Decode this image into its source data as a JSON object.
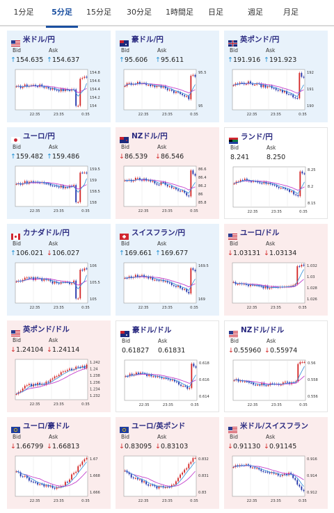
{
  "tabs": [
    {
      "label": "1分足",
      "active": false
    },
    {
      "label": "5分足",
      "active": true
    },
    {
      "label": "15分足",
      "active": false
    },
    {
      "label": "30分足",
      "active": false
    },
    {
      "label": "1時間足",
      "active": false
    },
    {
      "label": "日足",
      "active": false
    },
    {
      "label": "週足",
      "active": false
    },
    {
      "label": "月足",
      "active": false
    }
  ],
  "labels": {
    "bid": "Bid",
    "ask": "Ask"
  },
  "colors": {
    "up_arrow": "#1f8fd3",
    "down_arrow": "#d32727",
    "bull_candle": "#d32727",
    "bear_candle": "#2233aa",
    "ma_short": "#2e8bd8",
    "ma_long": "#c23fcc",
    "active_tab": "#1a4fa0"
  },
  "cards": [
    {
      "pair": "米ドル/円",
      "flag": "us",
      "trend": "up",
      "bid": "154.635",
      "ask": "154.637",
      "bid_dir": "up",
      "ask_dir": "up",
      "yticks": [
        "154.8",
        "154.6",
        "154.4",
        "154.2",
        "154"
      ],
      "xticks": [
        "22:35",
        "23:35",
        "0:35"
      ],
      "shape": "tail-up"
    },
    {
      "pair": "豪ドル/円",
      "flag": "au",
      "trend": "up",
      "bid": "95.606",
      "ask": "95.611",
      "bid_dir": "up",
      "ask_dir": "up",
      "yticks": [
        "95.5",
        "95"
      ],
      "xticks": [
        "22:35",
        "23:35",
        "0:35"
      ],
      "shape": "drop-spike"
    },
    {
      "pair": "英ポンド/円",
      "flag": "gb",
      "trend": "up",
      "bid": "191.916",
      "ask": "191.923",
      "bid_dir": "up",
      "ask_dir": "up",
      "yticks": [
        "192",
        "191",
        "190"
      ],
      "xticks": [
        "22:35",
        "23:35",
        "0:35"
      ],
      "shape": "drop-spike"
    },
    {
      "pair": "ユーロ/円",
      "flag": "jp",
      "trend": "up",
      "bid": "159.482",
      "ask": "159.486",
      "bid_dir": "up",
      "ask_dir": "up",
      "yticks": [
        "159.5",
        "159",
        "158.5",
        "158"
      ],
      "xticks": [
        "22:35",
        "23:35",
        "0:35"
      ],
      "shape": "tail-up"
    },
    {
      "pair": "NZドル/円",
      "flag": "nz",
      "trend": "down",
      "bid": "86.539",
      "ask": "86.546",
      "bid_dir": "down",
      "ask_dir": "down",
      "yticks": [
        "86.6",
        "86.4",
        "86.2",
        "86",
        "85.8"
      ],
      "xticks": [
        "22:35",
        "23:35",
        "0:35"
      ],
      "shape": "drop-spike"
    },
    {
      "pair": "ランド/円",
      "flag": "za",
      "trend": "flat",
      "bid": "8.241",
      "ask": "8.250",
      "bid_dir": "none",
      "ask_dir": "none",
      "yticks": [
        "8.25",
        "8.2",
        "8.15"
      ],
      "xticks": [
        "22:35",
        "23:35",
        "0:35"
      ],
      "shape": "drop-spike"
    },
    {
      "pair": "カナダドル/円",
      "flag": "ca",
      "trend": "up",
      "bid": "106.021",
      "ask": "106.027",
      "bid_dir": "up",
      "ask_dir": "down",
      "yticks": [
        "106",
        "105.5",
        "105"
      ],
      "xticks": [
        "22:35",
        "23:35",
        "0:35"
      ],
      "shape": "tail-up"
    },
    {
      "pair": "スイスフラン/円",
      "flag": "ch",
      "trend": "up",
      "bid": "169.661",
      "ask": "169.677",
      "bid_dir": "up",
      "ask_dir": "up",
      "yticks": [
        "169.5",
        "169"
      ],
      "xticks": [
        "22:35",
        "23:35",
        "0:35"
      ],
      "shape": "drop-spike"
    },
    {
      "pair": "ユーロ/ドル",
      "flag": "us",
      "trend": "down",
      "bid": "1.03131",
      "ask": "1.03134",
      "bid_dir": "down",
      "ask_dir": "down",
      "yticks": [
        "1.032",
        "1.03",
        "1.028",
        "1.026"
      ],
      "xticks": [
        "22:35",
        "23:35",
        "0:35"
      ],
      "shape": "dip-spike"
    },
    {
      "pair": "英ポンド/ドル",
      "flag": "us",
      "trend": "down",
      "bid": "1.24104",
      "ask": "1.24114",
      "bid_dir": "down",
      "ask_dir": "down",
      "yticks": [
        "1.242",
        "1.24",
        "1.238",
        "1.236",
        "1.234",
        "1.232"
      ],
      "xticks": [
        "22:35",
        "23:35",
        "0:35"
      ],
      "shape": "rise"
    },
    {
      "pair": "豪ドル/ドル",
      "flag": "au",
      "trend": "flat",
      "bid": "0.61827",
      "ask": "0.61831",
      "bid_dir": "none",
      "ask_dir": "none",
      "yticks": [
        "0.618",
        "0.616",
        "0.614"
      ],
      "xticks": [
        "22:35",
        "23:35",
        "0:35"
      ],
      "shape": "drop-spike"
    },
    {
      "pair": "NZドル/ドル",
      "flag": "us",
      "trend": "flat",
      "bid": "0.55960",
      "ask": "0.55974",
      "bid_dir": "down",
      "ask_dir": "down",
      "yticks": [
        "0.56",
        "0.558",
        "0.556"
      ],
      "xticks": [
        "22:35",
        "23:35",
        "0:35"
      ],
      "shape": "dip-spike"
    },
    {
      "pair": "ユーロ/豪ドル",
      "flag": "eu",
      "trend": "down",
      "bid": "1.66799",
      "ask": "1.66813",
      "bid_dir": "down",
      "ask_dir": "down",
      "yticks": [
        "1.67",
        "1.668",
        "1.666"
      ],
      "xticks": [
        "22:35",
        "23:35",
        "0:35"
      ],
      "shape": "u-rise"
    },
    {
      "pair": "ユーロ/英ポンド",
      "flag": "eu",
      "trend": "down",
      "bid": "0.83095",
      "ask": "0.83103",
      "bid_dir": "down",
      "ask_dir": "down",
      "yticks": [
        "0.832",
        "0.831",
        "0.83"
      ],
      "xticks": [
        "22:35",
        "23:35",
        "0:35"
      ],
      "shape": "u-rise"
    },
    {
      "pair": "米ドル/スイスフラン",
      "flag": "us",
      "trend": "down",
      "bid": "0.91130",
      "ask": "0.91145",
      "bid_dir": "down",
      "ask_dir": "down",
      "yticks": [
        "0.916",
        "0.914",
        "0.912"
      ],
      "xticks": [
        "22:35",
        "23:35",
        "0:35"
      ],
      "shape": "fall"
    }
  ]
}
